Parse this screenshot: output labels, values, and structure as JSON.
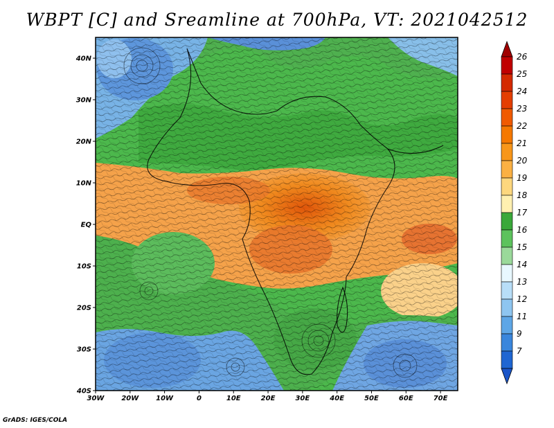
{
  "title": "WBPT [C] and Sreamline at 700hPa, VT: 2021042512",
  "credit": "GrADS: IGES/COLA",
  "map": {
    "lon_range": [
      -30,
      75
    ],
    "lat_range": [
      -40,
      45
    ],
    "lat_ticks": [
      {
        "lat": 40,
        "label": "40N"
      },
      {
        "lat": 30,
        "label": "30N"
      },
      {
        "lat": 20,
        "label": "20N"
      },
      {
        "lat": 10,
        "label": "10N"
      },
      {
        "lat": 0,
        "label": "EQ"
      },
      {
        "lat": -10,
        "label": "10S"
      },
      {
        "lat": -20,
        "label": "20S"
      },
      {
        "lat": -30,
        "label": "30S"
      },
      {
        "lat": -40,
        "label": "40S"
      }
    ],
    "lon_ticks": [
      {
        "lon": -30,
        "label": "30W"
      },
      {
        "lon": -20,
        "label": "20W"
      },
      {
        "lon": -10,
        "label": "10W"
      },
      {
        "lon": 0,
        "label": "0"
      },
      {
        "lon": 10,
        "label": "10E"
      },
      {
        "lon": 20,
        "label": "20E"
      },
      {
        "lon": 30,
        "label": "30E"
      },
      {
        "lon": 40,
        "label": "40E"
      },
      {
        "lon": 50,
        "label": "50E"
      },
      {
        "lon": 60,
        "label": "60E"
      },
      {
        "lon": 70,
        "label": "70E"
      }
    ]
  },
  "colorbar": {
    "levels": [
      "26",
      "25",
      "24",
      "23",
      "22",
      "21",
      "20",
      "19",
      "18",
      "17",
      "16",
      "15",
      "14",
      "13",
      "12",
      "11",
      "9",
      "7"
    ],
    "colors": [
      "#c00000",
      "#d42a00",
      "#e43e00",
      "#f05a00",
      "#f57800",
      "#f8961a",
      "#fbb043",
      "#fdd77e",
      "#fff0b0",
      "#3aa83a",
      "#5cc25c",
      "#9ad99a",
      "#e8f8ff",
      "#b8def8",
      "#8ec5f0",
      "#5ea6e6",
      "#3a86dc",
      "#1f66d2"
    ],
    "top_color": "#a00000",
    "bottom_color": "#1a55c8"
  }
}
